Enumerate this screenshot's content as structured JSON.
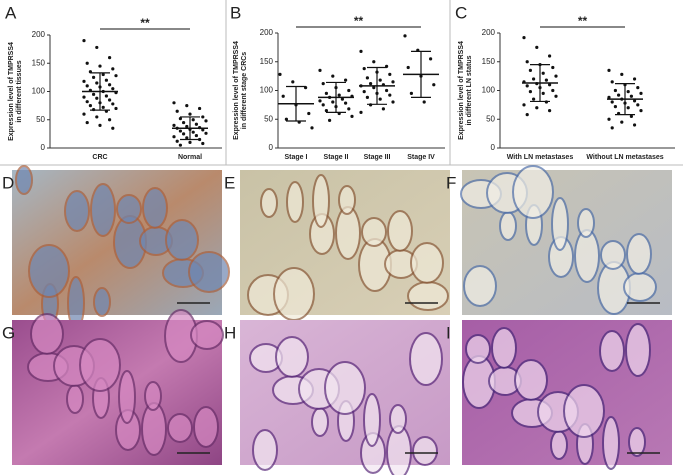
{
  "chart_data": [
    {
      "type": "dot",
      "label": "A",
      "ylabel": [
        "Expression level of TMPRSS4",
        "in different tissues"
      ],
      "categories": [
        "CRC",
        "Normal"
      ],
      "points": [
        [
          190,
          178,
          160,
          150,
          145,
          140,
          135,
          130,
          128,
          125,
          120,
          118,
          115,
          112,
          110,
          108,
          105,
          102,
          100,
          98,
          95,
          92,
          90,
          88,
          85,
          82,
          80,
          78,
          75,
          72,
          70,
          68,
          65,
          60,
          55,
          50,
          45,
          40,
          35
        ],
        [
          80,
          75,
          70,
          65,
          60,
          55,
          52,
          50,
          48,
          45,
          42,
          40,
          38,
          36,
          35,
          33,
          32,
          30,
          28,
          26,
          25,
          22,
          20,
          18,
          15,
          12,
          10,
          8,
          5
        ]
      ],
      "means": [
        100,
        35
      ],
      "sd": [
        33,
        20
      ],
      "annotation": "**",
      "ylim": [
        0,
        200
      ],
      "yticks": [
        0,
        50,
        100,
        150,
        200
      ]
    },
    {
      "type": "dot",
      "label": "B",
      "ylabel": [
        "Expression level of TMPRSS4",
        "in different stage CRCs"
      ],
      "categories": [
        "Stage I",
        "Stage II",
        "Stage III",
        "Stage IV"
      ],
      "points": [
        [
          128,
          115,
          105,
          90,
          75,
          60,
          50,
          45,
          35
        ],
        [
          135,
          125,
          118,
          112,
          105,
          100,
          95,
          92,
          90,
          88,
          85,
          82,
          80,
          78,
          75,
          72,
          68,
          65,
          60,
          55,
          48
        ],
        [
          168,
          150,
          142,
          138,
          132,
          128,
          122,
          118,
          115,
          112,
          110,
          108,
          105,
          100,
          98,
          95,
          92,
          88,
          85,
          80,
          75,
          68,
          62
        ],
        [
          195,
          170,
          155,
          140,
          125,
          110,
          95,
          80
        ]
      ],
      "means": [
        77,
        88,
        108,
        128
      ],
      "sd": [
        30,
        26,
        32,
        40
      ],
      "annotation": "**",
      "ylim": [
        0,
        200
      ],
      "yticks": [
        0,
        50,
        100,
        150,
        200
      ]
    },
    {
      "type": "dot",
      "label": "C",
      "ylabel": [
        "Expression level of TMPRSS4",
        "in different LN status"
      ],
      "categories": [
        "With LN metastases",
        "Without LN metastases"
      ],
      "points": [
        [
          192,
          175,
          160,
          150,
          145,
          140,
          135,
          130,
          125,
          120,
          118,
          115,
          112,
          110,
          108,
          105,
          100,
          98,
          95,
          90,
          85,
          80,
          75,
          70,
          65,
          58
        ],
        [
          135,
          128,
          120,
          115,
          110,
          105,
          100,
          98,
          95,
          92,
          90,
          88,
          85,
          82,
          80,
          78,
          75,
          72,
          70,
          65,
          60,
          55,
          50,
          45,
          40,
          35
        ]
      ],
      "means": [
        113,
        85
      ],
      "sd": [
        32,
        27
      ],
      "annotation": "**",
      "ylim": [
        0,
        200
      ],
      "yticks": [
        0,
        50,
        100,
        150,
        200
      ]
    }
  ],
  "panels": [
    {
      "label": "D"
    },
    {
      "label": "E"
    },
    {
      "label": "F"
    },
    {
      "label": "G"
    },
    {
      "label": "H"
    },
    {
      "label": "I"
    }
  ]
}
